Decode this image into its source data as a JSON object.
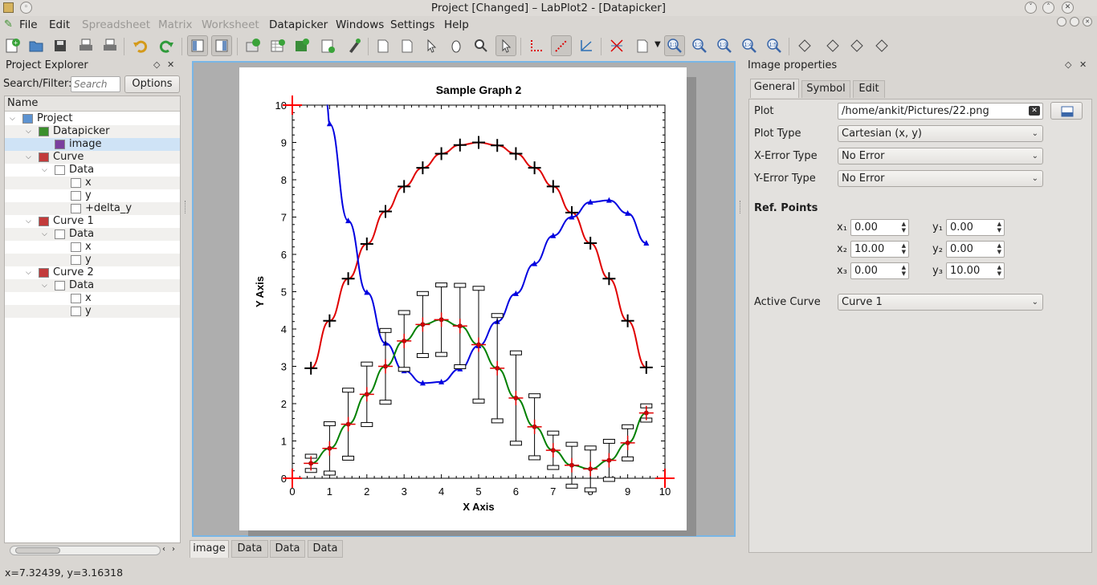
{
  "window": {
    "title": "Project    [Changed] – LabPlot2 - [Datapicker]"
  },
  "menu": [
    {
      "label": "File",
      "enabled": true
    },
    {
      "label": "Edit",
      "enabled": true
    },
    {
      "label": "Spreadsheet",
      "enabled": false
    },
    {
      "label": "Matrix",
      "enabled": false
    },
    {
      "label": "Worksheet",
      "enabled": false
    },
    {
      "label": "Datapicker",
      "enabled": true
    },
    {
      "label": "Windows",
      "enabled": true
    },
    {
      "label": "Settings",
      "enabled": true
    },
    {
      "label": "Help",
      "enabled": true
    }
  ],
  "zoom_buttons": [
    "1:1",
    "1:2",
    "1:3",
    "1:4",
    "1:5"
  ],
  "project_explorer": {
    "title": "Project Explorer",
    "search_label": "Search/Filter:",
    "search_placeholder": "Search",
    "options_label": "Options",
    "column_header": "Name",
    "items": [
      {
        "label": "Project",
        "icon": "folder-icon",
        "expanded": true
      },
      {
        "label": "Datapicker",
        "icon": "datapicker-icon",
        "expanded": true
      },
      {
        "label": "image",
        "icon": "image-icon",
        "selected": true
      },
      {
        "label": "Curve",
        "icon": "curve-icon",
        "expanded": true
      },
      {
        "label": "Data",
        "icon": "spreadsheet-icon",
        "expanded": true
      },
      {
        "label": "x",
        "icon": "column-icon"
      },
      {
        "label": "y",
        "icon": "column-icon"
      },
      {
        "label": "+delta_y",
        "icon": "column-icon"
      },
      {
        "label": "Curve 1",
        "icon": "curve-icon",
        "expanded": true
      },
      {
        "label": "Data",
        "icon": "spreadsheet-icon",
        "expanded": true
      },
      {
        "label": "x",
        "icon": "column-icon"
      },
      {
        "label": "y",
        "icon": "column-icon"
      },
      {
        "label": "Curve 2",
        "icon": "curve-icon",
        "expanded": true
      },
      {
        "label": "Data",
        "icon": "spreadsheet-icon",
        "expanded": true
      },
      {
        "label": "x",
        "icon": "column-icon"
      },
      {
        "label": "y",
        "icon": "column-icon"
      }
    ]
  },
  "bottom_tabs": [
    "image",
    "Data",
    "Data",
    "Data"
  ],
  "image_properties": {
    "title": "Image properties",
    "tabs": [
      "General",
      "Symbol",
      "Edit"
    ],
    "plot_label": "Plot",
    "plot_path": "/home/ankit/Pictures/22.png",
    "plot_type_label": "Plot Type",
    "plot_type": "Cartesian (x, y)",
    "x_error_label": "X-Error Type",
    "x_error": "No Error",
    "y_error_label": "Y-Error Type",
    "y_error": "No Error",
    "ref_points_label": "Ref. Points",
    "ref_points": [
      {
        "x_label": "x₁",
        "x": "0.00",
        "y_label": "y₁",
        "y": "0.00"
      },
      {
        "x_label": "x₂",
        "x": "10.00",
        "y_label": "y₂",
        "y": "0.00"
      },
      {
        "x_label": "x₃",
        "x": "0.00",
        "y_label": "y₃",
        "y": "10.00"
      }
    ],
    "active_curve_label": "Active Curve",
    "active_curve": "Curve 1"
  },
  "status_bar": "x=7.32439, y=3.16318",
  "chart_data": {
    "type": "line",
    "title": "Sample Graph 2",
    "xlabel": "X Axis",
    "ylabel": "Y Axis",
    "xlim": [
      0,
      10
    ],
    "ylim": [
      0,
      10
    ],
    "x_ticks": [
      0,
      1,
      2,
      3,
      4,
      5,
      6,
      7,
      8,
      9,
      10
    ],
    "y_ticks": [
      0,
      1,
      2,
      3,
      4,
      5,
      6,
      7,
      8,
      9,
      10
    ],
    "series": [
      {
        "color": "#e00000",
        "marker": "plus-black",
        "x": [
          0.5,
          1,
          1.5,
          2,
          2.5,
          3,
          3.5,
          4,
          4.5,
          5,
          5.5,
          6,
          6.5,
          7,
          7.5,
          8,
          8.5,
          9,
          9.5
        ],
        "y": [
          2.95,
          4.22,
          5.35,
          6.28,
          7.15,
          7.82,
          8.32,
          8.7,
          8.93,
          9.0,
          8.92,
          8.7,
          8.32,
          7.82,
          7.12,
          6.3,
          5.35,
          4.22,
          2.97
        ]
      },
      {
        "color": "#0000e0",
        "marker": "triangle",
        "x": [
          1,
          1.5,
          2,
          2.5,
          3,
          3.5,
          4,
          4.5,
          5,
          5.5,
          6,
          6.5,
          7,
          7.5,
          8,
          8.5,
          9,
          9.5
        ],
        "y": [
          9.5,
          6.9,
          4.98,
          3.62,
          2.88,
          2.55,
          2.58,
          2.93,
          3.55,
          4.2,
          4.95,
          5.75,
          6.5,
          7.0,
          7.4,
          7.45,
          7.1,
          6.3
        ]
      },
      {
        "color": "#008000",
        "marker": "plus-red",
        "x": [
          0.5,
          1,
          1.5,
          2,
          2.5,
          3,
          3.5,
          4,
          4.5,
          5,
          5.5,
          6,
          6.5,
          7,
          7.5,
          8,
          8.5,
          9,
          9.5
        ],
        "y": [
          0.4,
          0.8,
          1.45,
          2.25,
          3.0,
          3.68,
          4.12,
          4.25,
          4.08,
          3.58,
          2.95,
          2.15,
          1.38,
          0.75,
          0.35,
          0.25,
          0.48,
          0.95,
          1.75
        ],
        "y_error": [
          0.18,
          0.65,
          0.9,
          0.8,
          0.95,
          0.75,
          0.82,
          0.92,
          1.08,
          1.5,
          1.4,
          1.2,
          0.82,
          0.45,
          0.55,
          0.55,
          0.5,
          0.42,
          0.18
        ]
      }
    ]
  }
}
